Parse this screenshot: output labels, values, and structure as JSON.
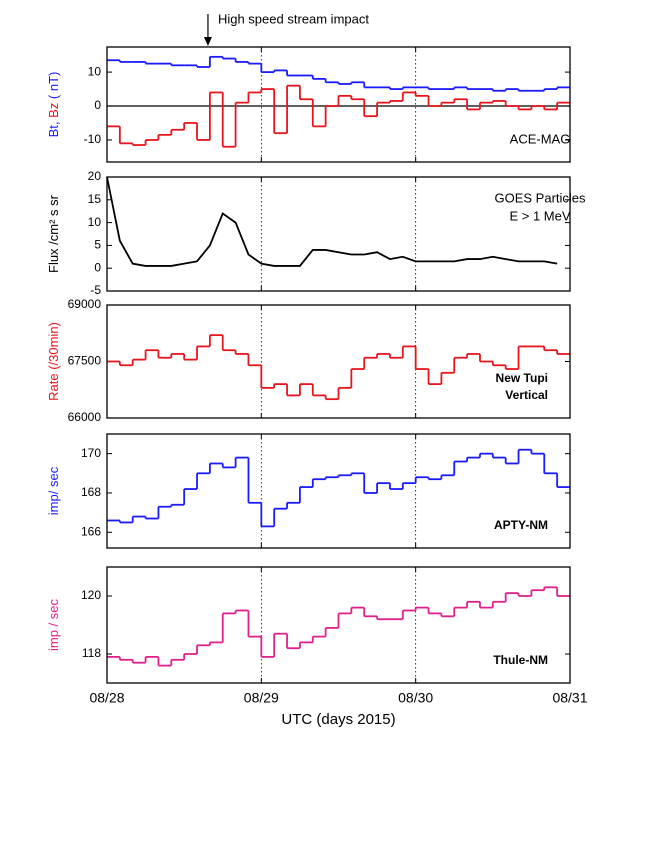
{
  "chart_data": [
    {
      "type": "step",
      "ylabel": "( nT)",
      "annotation": [
        "ACE-MAG"
      ],
      "annotation_bold": false,
      "event": {
        "label": "High speed stream impact",
        "x": 15.7
      },
      "hline": 0,
      "x": [
        0,
        2,
        4,
        6,
        8,
        10,
        12,
        14,
        16,
        18,
        20,
        22,
        24,
        26,
        28,
        30,
        32,
        34,
        36,
        38,
        40,
        42,
        44,
        46,
        48,
        50,
        52,
        54,
        56,
        58,
        60,
        62,
        64,
        66,
        68,
        70
      ],
      "series": [
        {
          "name": "Bt,",
          "color": "#1a1aff",
          "values": [
            13.5,
            13,
            13,
            12.5,
            12.5,
            12,
            12,
            11.5,
            14.5,
            14,
            13,
            12.5,
            10,
            10.5,
            9,
            9,
            8,
            7,
            6.5,
            7,
            5.5,
            5.5,
            5,
            5.5,
            5.5,
            5,
            5,
            5.5,
            5,
            5,
            4.5,
            5,
            4.5,
            4.5,
            5,
            5.5
          ]
        },
        {
          "name": "Bz",
          "color": "#e8141c",
          "values": [
            -6,
            -11,
            -11.5,
            -10,
            -8.5,
            -7,
            -5,
            -10,
            4,
            -12,
            1,
            4,
            5,
            -8,
            6,
            2,
            -6,
            0,
            3,
            2,
            -3,
            1,
            1.5,
            4,
            3,
            0,
            1,
            2,
            -1,
            1,
            1.5,
            0,
            -1,
            0,
            -1,
            1
          ]
        }
      ],
      "xlim": [
        0,
        72
      ],
      "xticks": [
        0,
        24,
        48,
        72
      ],
      "xgrid": true,
      "ylim": [
        -16.5,
        17.4
      ],
      "yticks": [
        -10,
        0,
        10
      ]
    },
    {
      "type": "line",
      "ylabel": "Flux /cm² s sr",
      "annotation": [
        "GOES Particles",
        "E > 1 MeV"
      ],
      "annotation_bold": false,
      "x": [
        0,
        2,
        4,
        6,
        8,
        10,
        12,
        14,
        16,
        18,
        20,
        22,
        24,
        26,
        28,
        30,
        32,
        34,
        36,
        38,
        40,
        42,
        44,
        46,
        48,
        50,
        52,
        54,
        56,
        58,
        60,
        62,
        64,
        66,
        68,
        70
      ],
      "series": [
        {
          "name": "E > 1 MeV",
          "color": "#000000",
          "values": [
            20,
            6,
            1,
            0.5,
            0.5,
            0.5,
            1,
            1.5,
            5,
            12,
            10,
            3,
            1,
            0.5,
            0.5,
            0.5,
            4,
            4,
            3.5,
            3,
            3,
            3.5,
            2,
            2.5,
            1.5,
            1.5,
            1.5,
            1.5,
            2,
            2,
            2.5,
            2,
            1.5,
            1.5,
            1.5,
            1
          ]
        }
      ],
      "xlim": [
        0,
        72
      ],
      "xticks": [
        0,
        24,
        48,
        72
      ],
      "xgrid": true,
      "ylim": [
        -5,
        20
      ],
      "yticks": [
        -5,
        0,
        5,
        10,
        15,
        20
      ]
    },
    {
      "type": "step",
      "ylabel": "Rate (/30min)",
      "annotation": [
        "New Tupi",
        "Vertical"
      ],
      "annotation_bold": true,
      "x": [
        0,
        2,
        4,
        6,
        8,
        10,
        12,
        14,
        16,
        18,
        20,
        22,
        24,
        26,
        28,
        30,
        32,
        34,
        36,
        38,
        40,
        42,
        44,
        46,
        48,
        50,
        52,
        54,
        56,
        58,
        60,
        62,
        64,
        66,
        68,
        70
      ],
      "series": [
        {
          "name": "New Tupi",
          "color": "#e8141c",
          "values": [
            67500,
            67400,
            67550,
            67800,
            67600,
            67700,
            67550,
            67900,
            68200,
            67800,
            67700,
            67400,
            66800,
            66900,
            66600,
            66900,
            66600,
            66500,
            66800,
            67300,
            67600,
            67700,
            67600,
            67900,
            67300,
            66900,
            67200,
            67600,
            67700,
            67500,
            67400,
            67300,
            67900,
            67900,
            67800,
            67700
          ]
        }
      ],
      "xlim": [
        0,
        72
      ],
      "xticks": [
        0,
        24,
        48,
        72
      ],
      "xgrid": true,
      "ylim": [
        66000,
        69000
      ],
      "yticks": [
        66000,
        67500,
        69000
      ]
    },
    {
      "type": "step",
      "ylabel": "imp/ sec",
      "annotation": [
        "APTY-NM"
      ],
      "annotation_bold": true,
      "x": [
        0,
        2,
        4,
        6,
        8,
        10,
        12,
        14,
        16,
        18,
        20,
        22,
        24,
        26,
        28,
        30,
        32,
        34,
        36,
        38,
        40,
        42,
        44,
        46,
        48,
        50,
        52,
        54,
        56,
        58,
        60,
        62,
        64,
        66,
        68,
        70
      ],
      "series": [
        {
          "name": "APTY-NM",
          "color": "#1a1aff",
          "values": [
            166.6,
            166.5,
            166.8,
            166.7,
            167.3,
            167.4,
            168.2,
            169,
            169.5,
            169.3,
            169.8,
            167.5,
            166.3,
            167.2,
            167.5,
            168.3,
            168.7,
            168.8,
            168.9,
            169,
            168,
            168.5,
            168.2,
            168.5,
            168.8,
            168.7,
            168.9,
            169.6,
            169.8,
            170,
            169.8,
            169.5,
            170.2,
            170,
            169,
            168.3
          ]
        }
      ],
      "xlim": [
        0,
        72
      ],
      "xticks": [
        0,
        24,
        48,
        72
      ],
      "xgrid": true,
      "ylim": [
        165.2,
        171
      ],
      "yticks": [
        166,
        168,
        170
      ]
    },
    {
      "type": "step",
      "ylabel": "imp / sec",
      "annotation": [
        "Thule-NM"
      ],
      "annotation_bold": true,
      "xlabel": "UTC (days 2015)",
      "x": [
        0,
        2,
        4,
        6,
        8,
        10,
        12,
        14,
        16,
        18,
        20,
        22,
        24,
        26,
        28,
        30,
        32,
        34,
        36,
        38,
        40,
        42,
        44,
        46,
        48,
        50,
        52,
        54,
        56,
        58,
        60,
        62,
        64,
        66,
        68,
        70
      ],
      "series": [
        {
          "name": "Thule-NM",
          "color": "#e0208a",
          "values": [
            117.9,
            117.8,
            117.7,
            117.9,
            117.6,
            117.8,
            118,
            118.3,
            118.4,
            119.4,
            119.5,
            118.6,
            117.9,
            118.7,
            118.2,
            118.4,
            118.6,
            118.9,
            119.4,
            119.6,
            119.3,
            119.2,
            119.2,
            119.5,
            119.6,
            119.4,
            119.3,
            119.6,
            119.8,
            119.6,
            119.8,
            120.1,
            120,
            120.2,
            120.3,
            120
          ]
        }
      ],
      "xlim": [
        0,
        72
      ],
      "xticks": [
        {
          "value": 0,
          "label": "08/28"
        },
        {
          "value": 24,
          "label": "08/29"
        },
        {
          "value": 48,
          "label": "08/30"
        },
        {
          "value": 72,
          "label": "08/31"
        }
      ],
      "xgrid": true,
      "ylim": [
        117,
        121
      ],
      "yticks": [
        118,
        120
      ]
    }
  ]
}
